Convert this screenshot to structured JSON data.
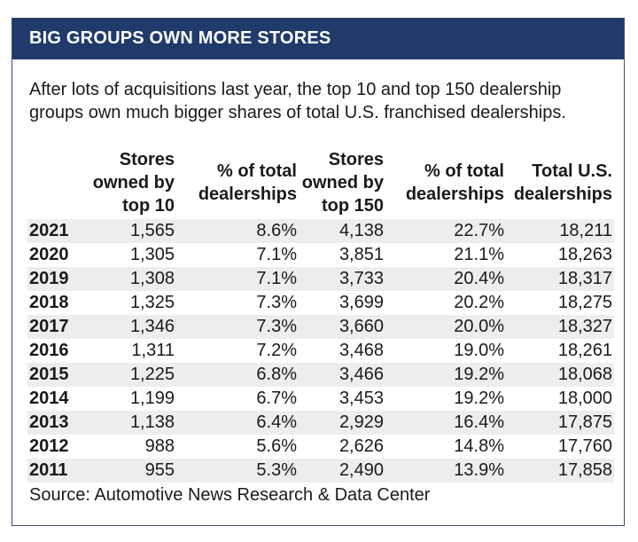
{
  "title": "BIG GROUPS OWN MORE STORES",
  "intro": "After lots of acquisitions last year, the top 10 and top 150 dealership groups own much bigger shares of total U.S. franchised dealerships.",
  "table": {
    "headers": [
      "",
      "Stores owned by top 10",
      "% of total dealerships",
      "Stores owned by top 150",
      "% of total dealerships",
      "Total U.S. dealerships"
    ],
    "rows": [
      [
        "2021",
        "1,565",
        "8.6%",
        "4,138",
        "22.7%",
        "18,211"
      ],
      [
        "2020",
        "1,305",
        "7.1%",
        "3,851",
        "21.1%",
        "18,263"
      ],
      [
        "2019",
        "1,308",
        "7.1%",
        "3,733",
        "20.4%",
        "18,317"
      ],
      [
        "2018",
        "1,325",
        "7.3%",
        "3,699",
        "20.2%",
        "18,275"
      ],
      [
        "2017",
        "1,346",
        "7.3%",
        "3,660",
        "20.0%",
        "18,327"
      ],
      [
        "2016",
        "1,311",
        "7.2%",
        "3,468",
        "19.0%",
        "18,261"
      ],
      [
        "2015",
        "1,225",
        "6.8%",
        "3,466",
        "19.2%",
        "18,068"
      ],
      [
        "2014",
        "1,199",
        "6.7%",
        "3,453",
        "19.2%",
        "18,000"
      ],
      [
        "2013",
        "1,138",
        "6.4%",
        "2,929",
        "16.4%",
        "17,875"
      ],
      [
        "2012",
        "988",
        "5.6%",
        "2,626",
        "14.8%",
        "17,760"
      ],
      [
        "2011",
        "955",
        "5.3%",
        "2,490",
        "13.9%",
        "17,858"
      ]
    ]
  },
  "source": "Source: Automotive News Research & Data Center"
}
